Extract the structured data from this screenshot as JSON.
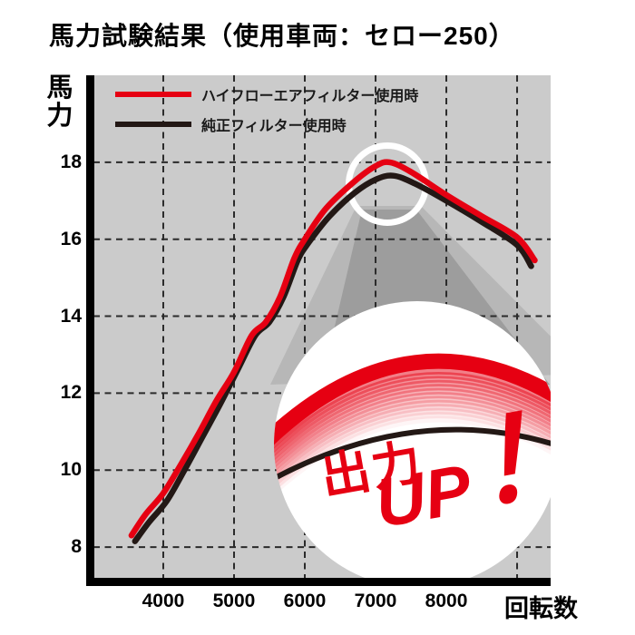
{
  "title": "馬力試験結果（使用車両：セロー250）",
  "axes": {
    "y_label": "馬力",
    "x_label": "回転数"
  },
  "legend": [
    {
      "label": "ハイフローエアフィルター使用時",
      "color": "#e60012"
    },
    {
      "label": "純正フィルター使用時",
      "color": "#231815"
    }
  ],
  "callout": {
    "line1": "出力",
    "line2": "UP",
    "exclamation": "！"
  },
  "colors": {
    "accent_red": "#e60012",
    "curve_black": "#231815",
    "plot_bg": "#cbcbcb",
    "beam_outer": "#b7b7b7",
    "beam_inner": "#9d9d9d",
    "grid": "#2b2b2b",
    "axis": "#000000",
    "highlight_ring": "#ffffff",
    "inset_bg": "#ffffff"
  },
  "chart_data": {
    "type": "line",
    "title": "馬力試験結果（使用車両：セロー250）",
    "xlabel": "回転数",
    "ylabel": "馬力",
    "xlim": [
      3013,
      9474
    ],
    "ylim": [
      7.2,
      20.26
    ],
    "x_grid": [
      4000,
      5000,
      6000,
      7000,
      8000,
      9000
    ],
    "x_ticks": [
      4000,
      5000,
      6000,
      7000,
      8000
    ],
    "y_ticks": [
      8,
      10,
      12,
      14,
      16,
      18
    ],
    "grid": "dashed",
    "legend_position": "top-left-inside",
    "series": [
      {
        "name": "ハイフローエアフィルター使用時",
        "color": "#e60012",
        "points": [
          [
            3550,
            8.3
          ],
          [
            3750,
            8.85
          ],
          [
            4000,
            9.4
          ],
          [
            4250,
            10.15
          ],
          [
            4500,
            10.95
          ],
          [
            4750,
            11.8
          ],
          [
            5000,
            12.55
          ],
          [
            5250,
            13.5
          ],
          [
            5450,
            13.85
          ],
          [
            5650,
            14.5
          ],
          [
            5850,
            15.5
          ],
          [
            6000,
            16.0
          ],
          [
            6300,
            16.8
          ],
          [
            6700,
            17.5
          ],
          [
            7000,
            17.9
          ],
          [
            7200,
            18.0
          ],
          [
            7500,
            17.75
          ],
          [
            8000,
            17.15
          ],
          [
            8500,
            16.6
          ],
          [
            9000,
            16.05
          ],
          [
            9250,
            15.45
          ]
        ]
      },
      {
        "name": "純正フィルター使用時",
        "color": "#231815",
        "points": [
          [
            3600,
            8.15
          ],
          [
            3800,
            8.65
          ],
          [
            4050,
            9.2
          ],
          [
            4300,
            10.0
          ],
          [
            4550,
            10.85
          ],
          [
            4800,
            11.7
          ],
          [
            5050,
            12.6
          ],
          [
            5300,
            13.5
          ],
          [
            5500,
            13.85
          ],
          [
            5700,
            14.5
          ],
          [
            5900,
            15.45
          ],
          [
            6050,
            15.9
          ],
          [
            6350,
            16.6
          ],
          [
            6700,
            17.2
          ],
          [
            7000,
            17.55
          ],
          [
            7250,
            17.65
          ],
          [
            7550,
            17.45
          ],
          [
            8000,
            17.0
          ],
          [
            8500,
            16.45
          ],
          [
            9000,
            15.85
          ],
          [
            9200,
            15.3
          ]
        ]
      }
    ],
    "annotations": {
      "peak_highlight": {
        "rpm": 7150,
        "hp": 17.8
      },
      "zoom_callout_text": "出力UP！"
    }
  }
}
